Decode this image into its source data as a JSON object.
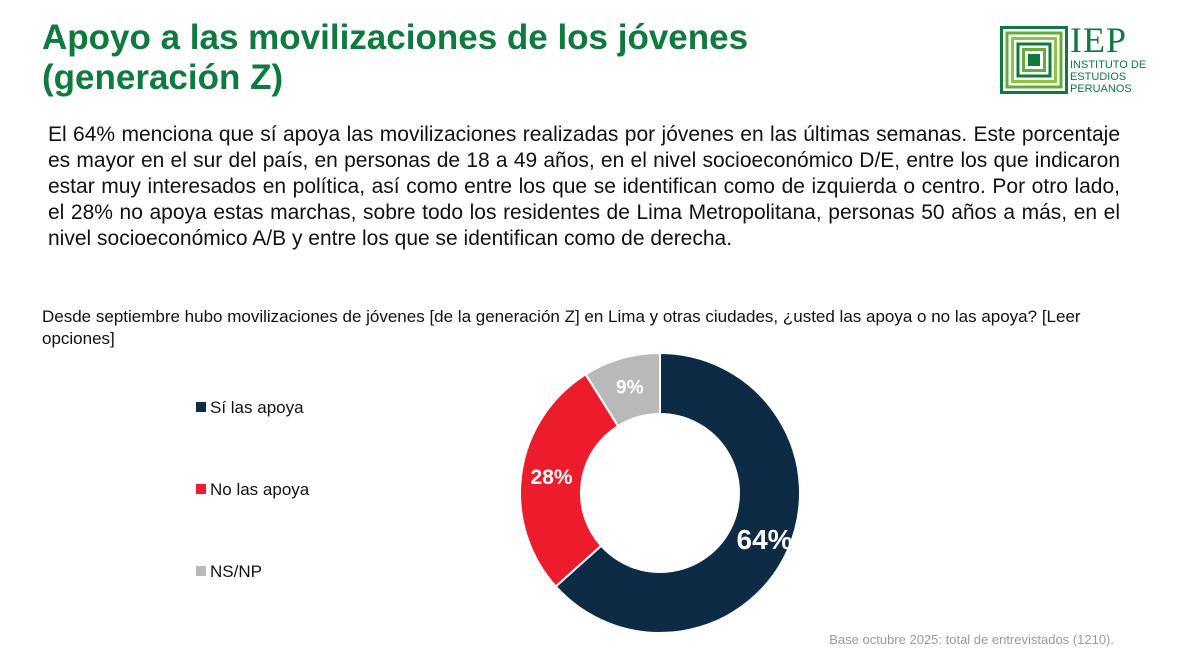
{
  "header": {
    "title_line1": "Apoyo a las movilizaciones de los jóvenes",
    "title_line2": "(generación Z)"
  },
  "logo": {
    "abbr": "IEP",
    "name": "INSTITUTO DE ESTUDIOS PERUANOS"
  },
  "summary": "El 64% menciona que sí apoya las movilizaciones realizadas por jóvenes en las últimas semanas. Este porcentaje es mayor en el sur del país, en personas de 18 a 49 años, en el nivel socioeconómico D/E, entre los que indicaron estar muy interesados en política, así como entre los que se identifican como de izquierda o centro. Por otro lado, el 28% no apoya estas marchas, sobre todo los residentes de Lima Metropolitana, personas 50 años a más, en el nivel socioeconómico A/B y entre los que se identifican como de derecha.",
  "question": "Desde septiembre hubo movilizaciones de jóvenes [de la generación Z] en Lima y otras ciudades, ¿usted las apoya o no las apoya? [Leer opciones]",
  "footnote": "Base octubre 2025: total de entrevistados (1210).",
  "chart_data": {
    "type": "pie",
    "subtype": "donut",
    "title": "Desde septiembre hubo movilizaciones de jóvenes [de la generación Z] en Lima y otras ciudades, ¿usted las apoya o no las apoya? [Leer opciones]",
    "categories": [
      "Sí las apoya",
      "No las apoya",
      "NS/NP"
    ],
    "values": [
      64,
      28,
      9
    ],
    "labels": [
      "64%",
      "28%",
      "9%"
    ],
    "colors": [
      "#0d2b45",
      "#ec1c2d",
      "#b9b9b9"
    ],
    "unit": "%",
    "legend_position": "left"
  }
}
